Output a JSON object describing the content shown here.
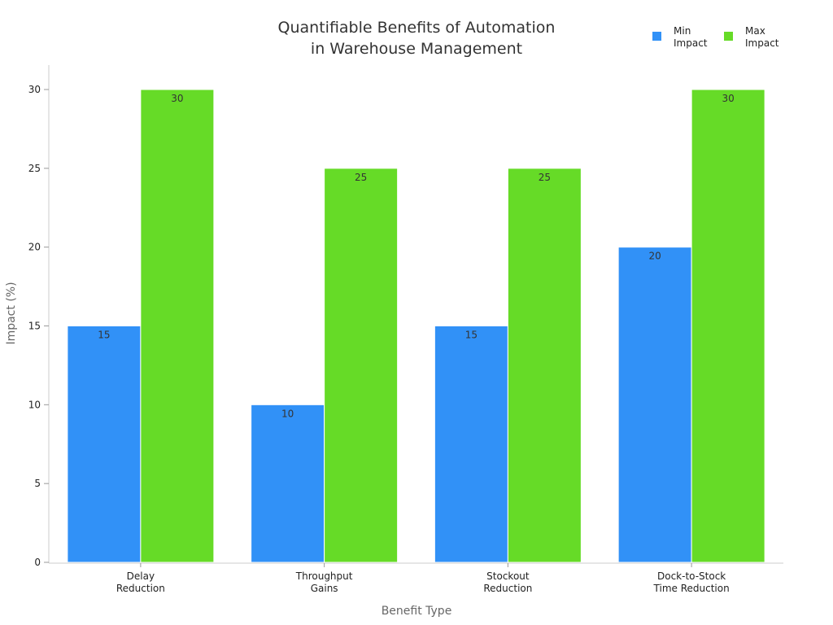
{
  "chart_data": {
    "type": "bar",
    "title": [
      "Quantifiable Benefits of Automation",
      "in Warehouse Management"
    ],
    "xlabel": "Benefit Type",
    "ylabel": "Impact (%)",
    "categories": [
      [
        "Delay",
        "Reduction"
      ],
      [
        "Throughput",
        "Gains"
      ],
      [
        "Stockout",
        "Reduction"
      ],
      [
        "Dock-to-Stock",
        "Time Reduction"
      ]
    ],
    "series": [
      {
        "name": [
          "Min",
          "Impact"
        ],
        "color": "#3191F7",
        "values": [
          15,
          10,
          15,
          20
        ]
      },
      {
        "name": [
          "Max",
          "Impact"
        ],
        "color": "#66DB27",
        "values": [
          30,
          25,
          25,
          30
        ]
      }
    ],
    "ylim": [
      0,
      30
    ],
    "yticks": [
      0,
      5,
      10,
      15,
      20,
      25,
      30
    ],
    "grid": false,
    "legend": "top-right",
    "data_labels": true
  }
}
